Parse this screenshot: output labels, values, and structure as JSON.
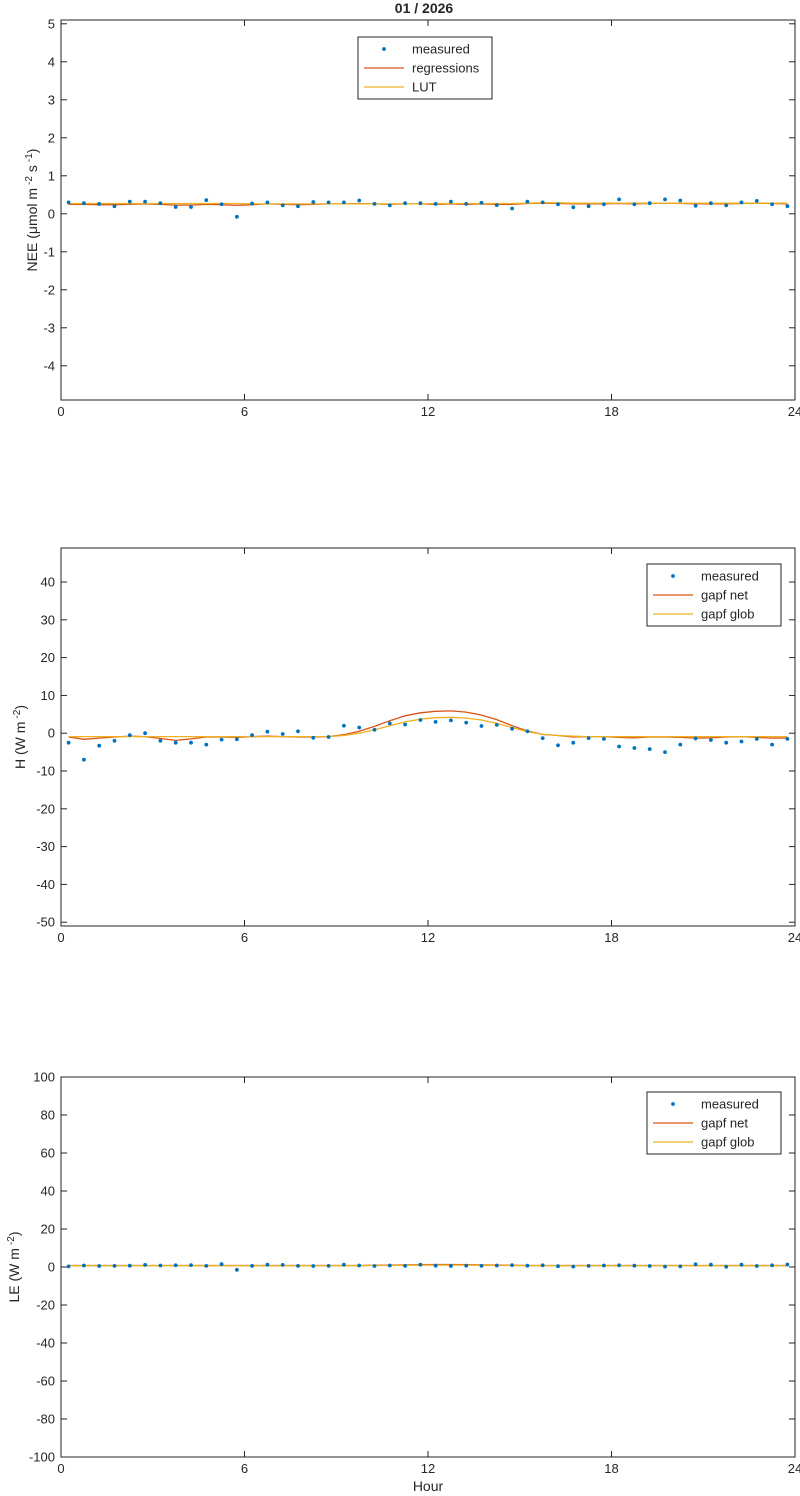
{
  "figure_title": "01 / 2026",
  "colors": {
    "measured": "#0072BD",
    "line1": "#D95319",
    "line2": "#EDB120",
    "axis": "#262626"
  },
  "chart_data": [
    {
      "type": "line",
      "ylabel": "NEE (μmol m  -2  s-1)",
      "ylabel_parts": {
        "main": "NEE (μmol m",
        "sup1": "-2",
        "mid": " s",
        "sup2": "-1",
        "end": ")"
      },
      "xlabel": "",
      "xlim": [
        0,
        24
      ],
      "ylim": [
        -4.9,
        5.1
      ],
      "xticks": [
        0,
        6,
        12,
        18,
        24
      ],
      "xtick_labels": [
        "0",
        "6",
        "12",
        "18",
        "24"
      ],
      "yticks": [
        -4,
        -3,
        -2,
        -1,
        0,
        1,
        2,
        3,
        4,
        5
      ],
      "ytick_labels": [
        "-4",
        "-3",
        "-2",
        "-1",
        "0",
        "1",
        "2",
        "3",
        "4",
        "5"
      ],
      "legend": {
        "location": "top-center",
        "entries": [
          "measured",
          "regressions",
          "LUT"
        ]
      },
      "x": [
        0.25,
        0.75,
        1.25,
        1.75,
        2.25,
        2.75,
        3.25,
        3.75,
        4.25,
        4.75,
        5.25,
        5.75,
        6.25,
        6.75,
        7.25,
        7.75,
        8.25,
        8.75,
        9.25,
        9.75,
        10.25,
        10.75,
        11.25,
        11.75,
        12.25,
        12.75,
        13.25,
        13.75,
        14.25,
        14.75,
        15.25,
        15.75,
        16.25,
        16.75,
        17.25,
        17.75,
        18.25,
        18.75,
        19.25,
        19.75,
        20.25,
        20.75,
        21.25,
        21.75,
        22.25,
        22.75,
        23.25,
        23.75
      ],
      "measured": [
        0.3,
        0.28,
        0.26,
        0.2,
        0.32,
        0.32,
        0.28,
        0.18,
        0.18,
        0.36,
        0.25,
        -0.08,
        0.27,
        0.3,
        0.22,
        0.2,
        0.31,
        0.3,
        0.3,
        0.35,
        0.26,
        0.22,
        0.28,
        0.28,
        0.26,
        0.32,
        0.26,
        0.29,
        0.23,
        0.14,
        0.32,
        0.3,
        0.25,
        0.17,
        0.2,
        0.25,
        0.38,
        0.25,
        0.28,
        0.38,
        0.35,
        0.21,
        0.28,
        0.22,
        0.3,
        0.34,
        0.25,
        0.2
      ],
      "series": [
        {
          "name": "regressions",
          "values": [
            0.25,
            0.25,
            0.24,
            0.24,
            0.25,
            0.26,
            0.25,
            0.23,
            0.23,
            0.25,
            0.24,
            0.22,
            0.24,
            0.26,
            0.25,
            0.24,
            0.25,
            0.26,
            0.26,
            0.27,
            0.26,
            0.25,
            0.26,
            0.26,
            0.25,
            0.26,
            0.25,
            0.26,
            0.25,
            0.25,
            0.27,
            0.28,
            0.27,
            0.26,
            0.26,
            0.26,
            0.27,
            0.26,
            0.27,
            0.28,
            0.27,
            0.26,
            0.26,
            0.26,
            0.27,
            0.28,
            0.27,
            0.26
          ]
        },
        {
          "name": "LUT",
          "values": [
            0.27,
            0.27,
            0.27,
            0.27,
            0.27,
            0.27,
            0.27,
            0.27,
            0.27,
            0.27,
            0.27,
            0.27,
            0.26,
            0.26,
            0.26,
            0.26,
            0.26,
            0.26,
            0.26,
            0.26,
            0.26,
            0.26,
            0.26,
            0.26,
            0.27,
            0.27,
            0.27,
            0.27,
            0.27,
            0.27,
            0.28,
            0.29,
            0.29,
            0.28,
            0.28,
            0.28,
            0.28,
            0.28,
            0.28,
            0.28,
            0.28,
            0.28,
            0.28,
            0.28,
            0.28,
            0.28,
            0.28,
            0.28
          ]
        }
      ]
    },
    {
      "type": "line",
      "ylabel": "H (W m  -2)",
      "ylabel_parts": {
        "main": "H (W m",
        "sup1": "-2",
        "end": ")"
      },
      "xlabel": "",
      "xlim": [
        0,
        24
      ],
      "ylim": [
        -51,
        49
      ],
      "xticks": [
        0,
        6,
        12,
        18,
        24
      ],
      "xtick_labels": [
        "0",
        "6",
        "12",
        "18",
        "24"
      ],
      "yticks": [
        -50,
        -40,
        -30,
        -20,
        -10,
        0,
        10,
        20,
        30,
        40
      ],
      "ytick_labels": [
        "-50",
        "-40",
        "-30",
        "-20",
        "-10",
        "0",
        "10",
        "20",
        "30",
        "40"
      ],
      "legend": {
        "location": "top-right",
        "entries": [
          "measured",
          "gapf net",
          "gapf glob"
        ]
      },
      "x": [
        0.25,
        0.75,
        1.25,
        1.75,
        2.25,
        2.75,
        3.25,
        3.75,
        4.25,
        4.75,
        5.25,
        5.75,
        6.25,
        6.75,
        7.25,
        7.75,
        8.25,
        8.75,
        9.25,
        9.75,
        10.25,
        10.75,
        11.25,
        11.75,
        12.25,
        12.75,
        13.25,
        13.75,
        14.25,
        14.75,
        15.25,
        15.75,
        16.25,
        16.75,
        17.25,
        17.75,
        18.25,
        18.75,
        19.25,
        19.75,
        20.25,
        20.75,
        21.25,
        21.75,
        22.25,
        22.75,
        23.25,
        23.75
      ],
      "measured": [
        -2.5,
        -7,
        -3.3,
        -2,
        -0.5,
        0,
        -2,
        -2.5,
        -2.5,
        -3,
        -1.7,
        -1.6,
        -0.5,
        0.4,
        -0.2,
        0.5,
        -1.2,
        -1,
        2,
        1.5,
        0.9,
        2.6,
        2.3,
        3.5,
        3,
        3.4,
        2.8,
        1.9,
        2.2,
        1.2,
        0.5,
        -1.3,
        -3.2,
        -2.5,
        -1.3,
        -1.5,
        -3.5,
        -3.9,
        -4.2,
        -5,
        -3,
        -1.4,
        -1.8,
        -2.5,
        -2.2,
        -1.5,
        -3,
        -1.5
      ],
      "series": [
        {
          "name": "gapf net",
          "values": [
            -1,
            -1.6,
            -1.3,
            -1,
            -0.8,
            -0.9,
            -1.4,
            -1.9,
            -1.5,
            -1,
            -1,
            -1.1,
            -0.9,
            -0.8,
            -0.9,
            -1,
            -1,
            -0.9,
            -0.4,
            0.5,
            1.8,
            3.3,
            4.6,
            5.4,
            5.8,
            5.9,
            5.6,
            4.8,
            3.6,
            2,
            0.6,
            -0.3,
            -0.6,
            -1,
            -0.9,
            -0.9,
            -1.1,
            -1.2,
            -1,
            -1,
            -1.1,
            -1.3,
            -1.2,
            -1,
            -0.9,
            -1.1,
            -1.3,
            -1.3
          ]
        },
        {
          "name": "gapf glob",
          "values": [
            -0.9,
            -0.9,
            -0.9,
            -0.9,
            -0.9,
            -0.9,
            -0.9,
            -0.9,
            -0.9,
            -0.9,
            -0.9,
            -0.9,
            -0.9,
            -0.9,
            -0.9,
            -0.9,
            -0.9,
            -0.9,
            -0.6,
            0,
            0.9,
            2,
            3,
            3.7,
            4.1,
            4.2,
            4,
            3.5,
            2.6,
            1.5,
            0.4,
            -0.3,
            -0.6,
            -0.8,
            -0.9,
            -0.9,
            -0.9,
            -0.9,
            -0.9,
            -0.9,
            -0.9,
            -0.9,
            -0.9,
            -0.9,
            -0.9,
            -0.9,
            -0.9,
            -0.9
          ]
        }
      ]
    },
    {
      "type": "line",
      "ylabel": "LE (W m  -2)",
      "ylabel_parts": {
        "main": "LE (W m",
        "sup1": "-2",
        "end": ")"
      },
      "xlabel": "Hour",
      "xlim": [
        0,
        24
      ],
      "ylim": [
        -100,
        100
      ],
      "xticks": [
        0,
        6,
        12,
        18,
        24
      ],
      "xtick_labels": [
        "0",
        "6",
        "12",
        "18",
        "24"
      ],
      "yticks": [
        -100,
        -80,
        -60,
        -40,
        -20,
        0,
        20,
        40,
        60,
        80,
        100
      ],
      "ytick_labels": [
        "-100",
        "-80",
        "-60",
        "-40",
        "-20",
        "0",
        "20",
        "40",
        "60",
        "80",
        "100"
      ],
      "legend": {
        "location": "top-right",
        "entries": [
          "measured",
          "gapf net",
          "gapf glob"
        ]
      },
      "x": [
        0.25,
        0.75,
        1.25,
        1.75,
        2.25,
        2.75,
        3.25,
        3.75,
        4.25,
        4.75,
        5.25,
        5.75,
        6.25,
        6.75,
        7.25,
        7.75,
        8.25,
        8.75,
        9.25,
        9.75,
        10.25,
        10.75,
        11.25,
        11.75,
        12.25,
        12.75,
        13.25,
        13.75,
        14.25,
        14.75,
        15.25,
        15.75,
        16.25,
        16.75,
        17.25,
        17.75,
        18.25,
        18.75,
        19.25,
        19.75,
        20.25,
        20.75,
        21.25,
        21.75,
        22.25,
        22.75,
        23.25,
        23.75
      ],
      "measured": [
        0.3,
        0.8,
        0.5,
        0.6,
        0.7,
        1.1,
        0.8,
        0.9,
        1,
        0.6,
        1.5,
        -1.5,
        0.6,
        1.2,
        1.1,
        0.6,
        0.5,
        0.6,
        1.2,
        0.8,
        0.5,
        0.8,
        0.6,
        1.2,
        0.7,
        0.5,
        0.7,
        0.6,
        0.8,
        1,
        0.7,
        0.9,
        0.4,
        0.2,
        0.6,
        0.8,
        0.9,
        0.7,
        0.5,
        0.2,
        0.3,
        1.4,
        1.2,
        0.1,
        1.2,
        0.5,
        0.9,
        1.3
      ],
      "series": [
        {
          "name": "gapf net",
          "values": [
            0.8,
            0.8,
            0.8,
            0.8,
            0.8,
            0.8,
            0.8,
            0.8,
            0.8,
            0.8,
            0.8,
            0.8,
            0.8,
            0.8,
            0.8,
            0.8,
            0.8,
            0.8,
            0.8,
            0.8,
            0.9,
            1,
            1.1,
            1.2,
            1.3,
            1.3,
            1.2,
            1.1,
            1,
            0.9,
            0.8,
            0.8,
            0.8,
            0.8,
            0.8,
            0.8,
            0.8,
            0.8,
            0.8,
            0.8,
            0.8,
            0.8,
            0.8,
            0.8,
            0.8,
            0.8,
            0.8,
            0.8
          ]
        },
        {
          "name": "gapf glob",
          "values": [
            0.7,
            0.7,
            0.7,
            0.7,
            0.7,
            0.7,
            0.7,
            0.7,
            0.7,
            0.7,
            0.7,
            0.7,
            0.7,
            0.7,
            0.7,
            0.7,
            0.7,
            0.7,
            0.7,
            0.7,
            0.8,
            0.8,
            0.9,
            1,
            1,
            1,
            1,
            0.9,
            0.8,
            0.8,
            0.7,
            0.7,
            0.7,
            0.7,
            0.7,
            0.7,
            0.7,
            0.7,
            0.7,
            0.7,
            0.7,
            0.7,
            0.7,
            0.7,
            0.7,
            0.7,
            0.7,
            0.7
          ]
        }
      ]
    }
  ]
}
